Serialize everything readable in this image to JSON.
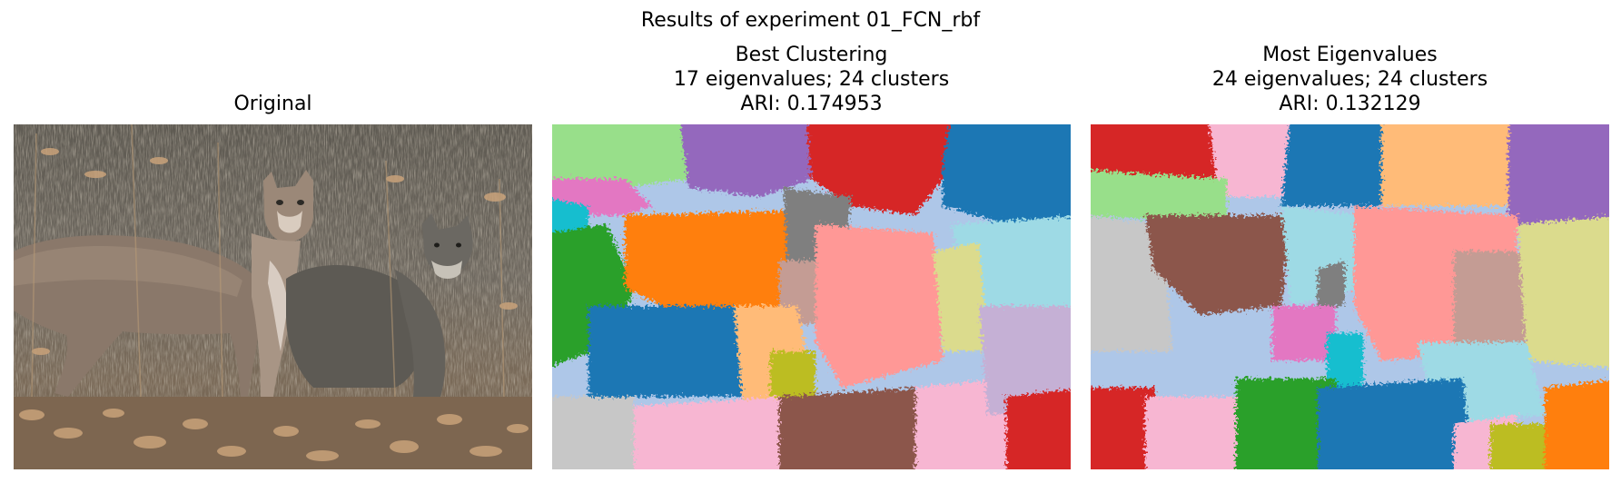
{
  "figure": {
    "suptitle": "Results of experiment 01_FCN_rbf"
  },
  "panels": [
    {
      "title_lines": [
        "Original"
      ],
      "image_description": "photo-of-cougar-and-cub-in-dry-grass"
    },
    {
      "title_lines": [
        "Best Clustering",
        "17 eigenvalues; 24 clusters",
        "ARI: 0.174953"
      ],
      "image_description": "segmentation-map-colored-clusters"
    },
    {
      "title_lines": [
        "Most Eigenvalues",
        "24 eigenvalues; 24 clusters",
        "ARI: 0.132129"
      ],
      "image_description": "segmentation-map-colored-clusters"
    }
  ],
  "palette": {
    "tab_blue": "#1f77b4",
    "tab_lightblue": "#aec7e8",
    "tab_orange": "#ff7f0e",
    "tab_lightorange": "#ffbb78",
    "tab_green": "#2ca02c",
    "tab_lightgreen": "#98df8a",
    "tab_red": "#d62728",
    "tab_salmon": "#ff9896",
    "tab_purple": "#9467bd",
    "tab_lavender": "#c5b0d5",
    "tab_brown": "#8c564b",
    "tab_rosybrown": "#c49c94",
    "tab_pink": "#e377c2",
    "tab_lightpink": "#f7b6d2",
    "tab_gray": "#7f7f7f",
    "tab_lightgray": "#c7c7c7",
    "tab_olive": "#bcbd22",
    "tab_khaki": "#dbdb8d",
    "tab_cyan": "#17becf",
    "tab_lightcyan": "#9edae5"
  }
}
